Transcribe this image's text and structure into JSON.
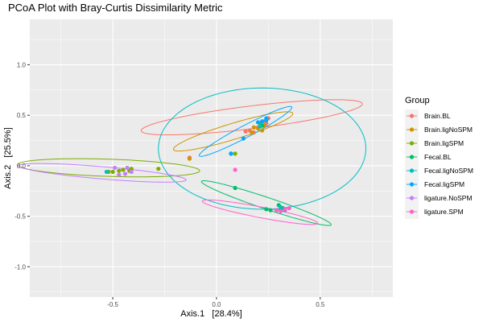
{
  "chart_data": {
    "type": "scatter",
    "title": "PCoA Plot with Bray-Curtis Dissimilarity Metric",
    "xlabel": "Axis.1   [28.4%]",
    "ylabel": "Axis.2   [25.5%]",
    "xlim": [
      -0.9,
      0.85
    ],
    "ylim": [
      -1.3,
      1.45
    ],
    "x_ticks": [
      -0.5,
      0.0,
      0.5
    ],
    "x_tick_labels": [
      "-0.5",
      "0.0",
      "0.5"
    ],
    "y_ticks": [
      -1.0,
      -0.5,
      0.0,
      0.5,
      1.0
    ],
    "y_tick_labels": [
      "-1.0",
      "-0.5",
      "0.0",
      "0.5",
      "1.0"
    ],
    "grid": true,
    "background": "#ebebeb",
    "legend": {
      "title": "Group",
      "position": "right"
    },
    "series": [
      {
        "name": "Brain.BL",
        "color": "#f8766d",
        "points": [
          [
            0.14,
            0.34
          ],
          [
            0.16,
            0.35
          ],
          [
            0.2,
            0.38
          ],
          [
            0.23,
            0.44
          ],
          [
            0.25,
            0.47
          ],
          [
            0.24,
            0.42
          ],
          [
            0.18,
            0.33
          ],
          [
            -0.13,
            0.08
          ]
        ],
        "ellipse": {
          "cx": 0.17,
          "cy": 0.48,
          "a": 0.55,
          "b": 0.11,
          "angle_deg": 14.5
        }
      },
      {
        "name": "Brain.ligNoSPM",
        "color": "#cd9600",
        "points": [
          [
            0.18,
            0.38
          ],
          [
            0.2,
            0.37
          ],
          [
            0.22,
            0.35
          ],
          [
            0.17,
            0.33
          ],
          [
            0.23,
            0.4
          ],
          [
            -0.13,
            0.07
          ]
        ],
        "ellipse": {
          "cx": 0.08,
          "cy": 0.34,
          "a": 0.34,
          "b": 0.07,
          "angle_deg": 33
        }
      },
      {
        "name": "Brain.ligSPM",
        "color": "#7cae00",
        "points": [
          [
            -0.52,
            -0.06
          ],
          [
            -0.5,
            -0.06
          ],
          [
            -0.47,
            -0.05
          ],
          [
            -0.45,
            -0.04
          ],
          [
            -0.42,
            -0.05
          ],
          [
            -0.41,
            -0.03
          ],
          [
            -0.28,
            -0.03
          ],
          [
            0.09,
            0.12
          ],
          [
            0.21,
            0.42
          ]
        ],
        "ellipse": {
          "cx": -0.52,
          "cy": -0.02,
          "a": 0.44,
          "b": 0.085,
          "angle_deg": -4
        }
      },
      {
        "name": "Fecal.BL",
        "color": "#00be67",
        "points": [
          [
            0.09,
            -0.22
          ],
          [
            0.24,
            -0.43
          ],
          [
            0.26,
            -0.44
          ],
          [
            0.3,
            -0.39
          ],
          [
            0.31,
            -0.43
          ],
          [
            0.32,
            -0.42
          ],
          [
            0.22,
            0.4
          ]
        ],
        "ellipse": {
          "cx": 0.24,
          "cy": -0.37,
          "a": 0.38,
          "b": 0.05,
          "angle_deg": -35
        }
      },
      {
        "name": "Fecal.ligNoSPM",
        "color": "#00bfc4",
        "points": [
          [
            0.07,
            0.12
          ],
          [
            -0.53,
            -0.06
          ],
          [
            0.31,
            -0.41
          ],
          [
            0.33,
            -0.44
          ],
          [
            0.21,
            0.39
          ]
        ],
        "ellipse": {
          "cx": 0.22,
          "cy": 0.17,
          "a": 0.5,
          "b": 0.6,
          "angle_deg": 0
        }
      },
      {
        "name": "Fecal.ligSPM",
        "color": "#00a9ff",
        "points": [
          [
            0.13,
            0.27
          ],
          [
            0.2,
            0.43
          ],
          [
            0.22,
            0.44
          ],
          [
            0.24,
            0.47
          ],
          [
            0.24,
            0.45
          ],
          [
            0.07,
            0.12
          ]
        ],
        "ellipse": {
          "cx": 0.14,
          "cy": 0.34,
          "a": 0.33,
          "b": 0.045,
          "angle_deg": 48
        }
      },
      {
        "name": "ligature.NoSPM",
        "color": "#c77cff",
        "points": [
          [
            -0.49,
            -0.02
          ],
          [
            -0.47,
            -0.09
          ],
          [
            -0.44,
            -0.08
          ],
          [
            -0.43,
            -0.02
          ],
          [
            -0.41,
            -0.06
          ]
        ],
        "ellipse": {
          "cx": -0.55,
          "cy": -0.07,
          "a": 0.41,
          "b": 0.06,
          "angle_deg": -10
        }
      },
      {
        "name": "ligature.SPM",
        "color": "#ff61cc",
        "points": [
          [
            0.09,
            -0.04
          ],
          [
            0.29,
            -0.44
          ],
          [
            0.31,
            -0.45
          ],
          [
            0.33,
            -0.43
          ],
          [
            0.35,
            -0.42
          ]
        ],
        "ellipse": {
          "cx": 0.21,
          "cy": -0.46,
          "a": 0.3,
          "b": 0.05,
          "angle_deg": -22
        }
      }
    ]
  }
}
